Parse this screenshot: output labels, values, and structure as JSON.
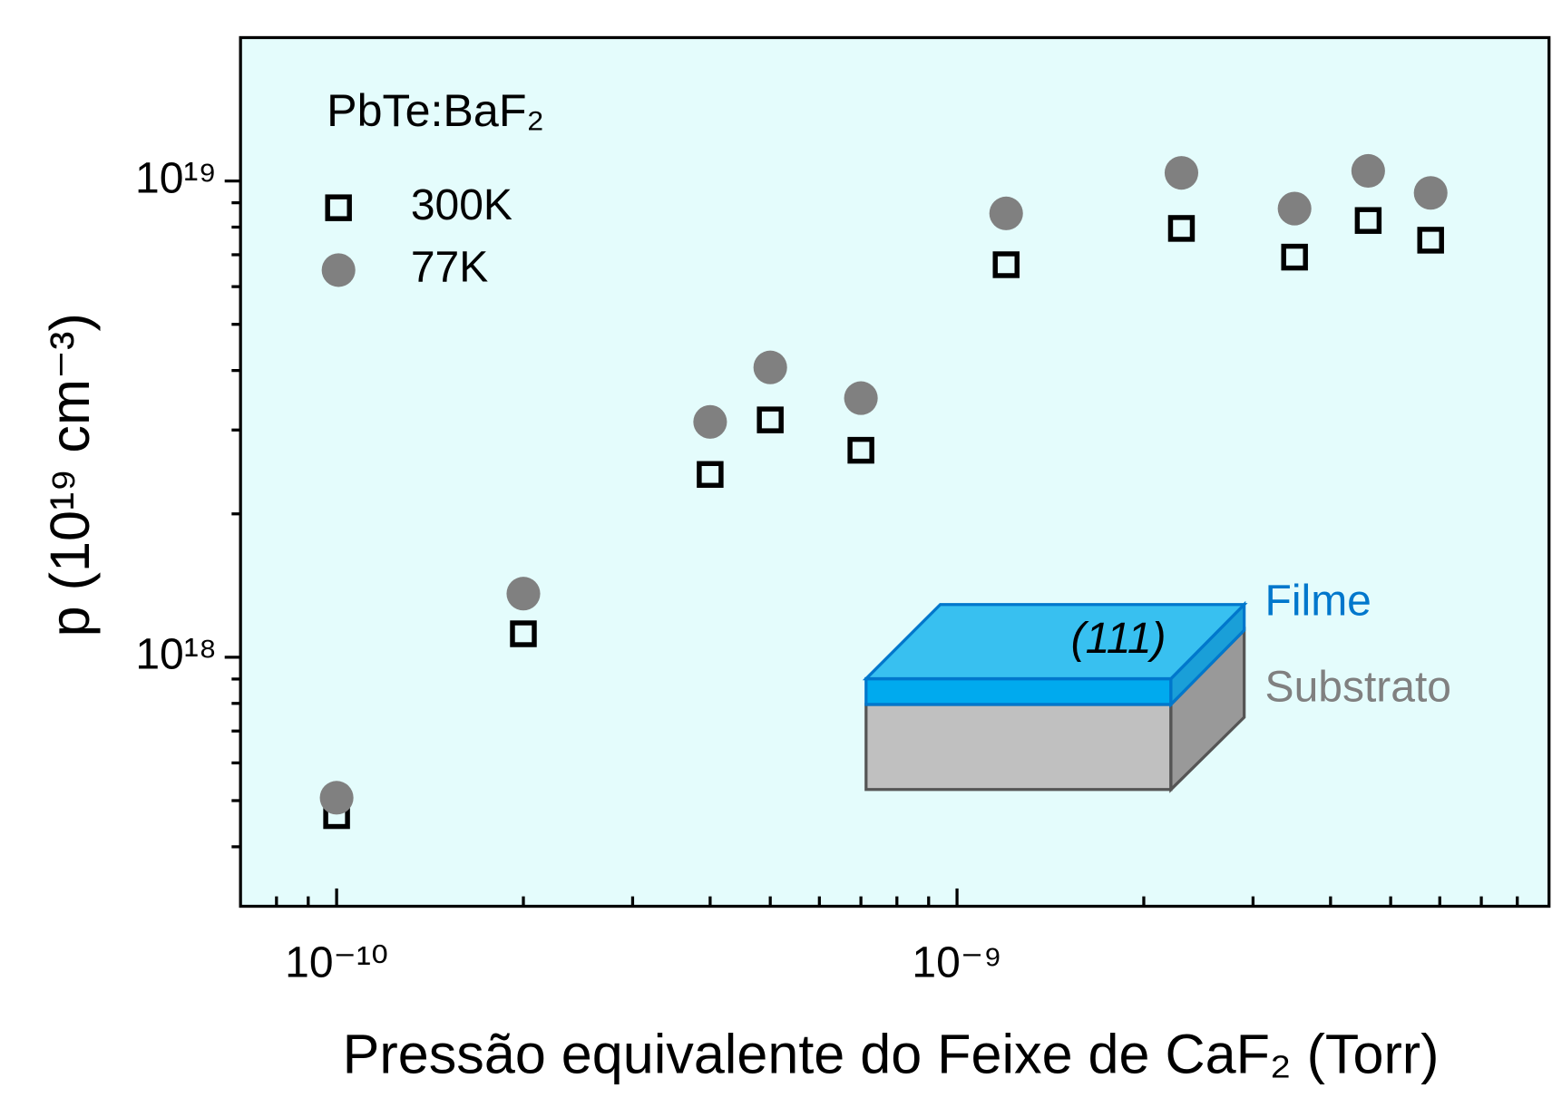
{
  "chart_data": {
    "type": "scatter",
    "xlabel": "Pressão equivalente do Feixe de CaF₂ (Torr)",
    "ylabel": "p (10¹⁹ cm⁻³)",
    "legend_title": "PbTe:BaF₂",
    "annotations": {
      "film": "Filme",
      "substrate": "Substrato",
      "orientation": "(111)"
    },
    "x": [
      1e-10,
      2e-10,
      4e-10,
      5e-10,
      7e-10,
      1.2e-09,
      2.3e-09,
      3.5e-09,
      4.6e-09,
      5.8e-09
    ],
    "series": [
      {
        "name": "300K",
        "color": "#000000",
        "marker": "square",
        "values": [
          4.65e+17,
          1.12e+18,
          2.42e+18,
          3.15e+18,
          2.72e+18,
          6.67e+18,
          7.95e+18,
          6.92e+18,
          8.26e+18,
          7.51e+18
        ]
      },
      {
        "name": "77K",
        "color": "#808080",
        "marker": "circle",
        "values": [
          5.07e+17,
          1.36e+18,
          3.12e+18,
          4.06e+18,
          3.5e+18,
          8.55e+18,
          1.04e+19,
          8.75e+18,
          1.05e+19,
          9.44e+18
        ]
      }
    ],
    "xscale": "log",
    "yscale": "log",
    "xlim": [
      7e-11,
      9e-09
    ],
    "ylim": [
      3e+17,
      2e+19
    ],
    "xticks": [
      {
        "value": 1e-10,
        "label": "10⁻¹⁰"
      },
      {
        "value": 1e-09,
        "label": "10⁻⁹"
      }
    ],
    "yticks": [
      {
        "value": 1e+18,
        "label": "10¹⁸"
      },
      {
        "value": 1e+19,
        "label": "10¹⁹"
      }
    ],
    "xminorticks": [
      8e-11,
      9e-11,
      2e-10,
      3e-10,
      4e-10,
      5e-10,
      6e-10,
      7e-10,
      8e-10,
      9e-10,
      2e-09,
      3e-09,
      4e-09,
      5e-09,
      6e-09,
      7e-09,
      8e-09
    ],
    "yminorticks": [
      4e+17,
      5e+17,
      6e+17,
      7e+17,
      8e+17,
      9e+17,
      2e+18,
      3e+18,
      4e+18,
      5e+18,
      6e+18,
      7e+18,
      8e+18,
      9e+18
    ],
    "background": "#e4fcfc"
  }
}
